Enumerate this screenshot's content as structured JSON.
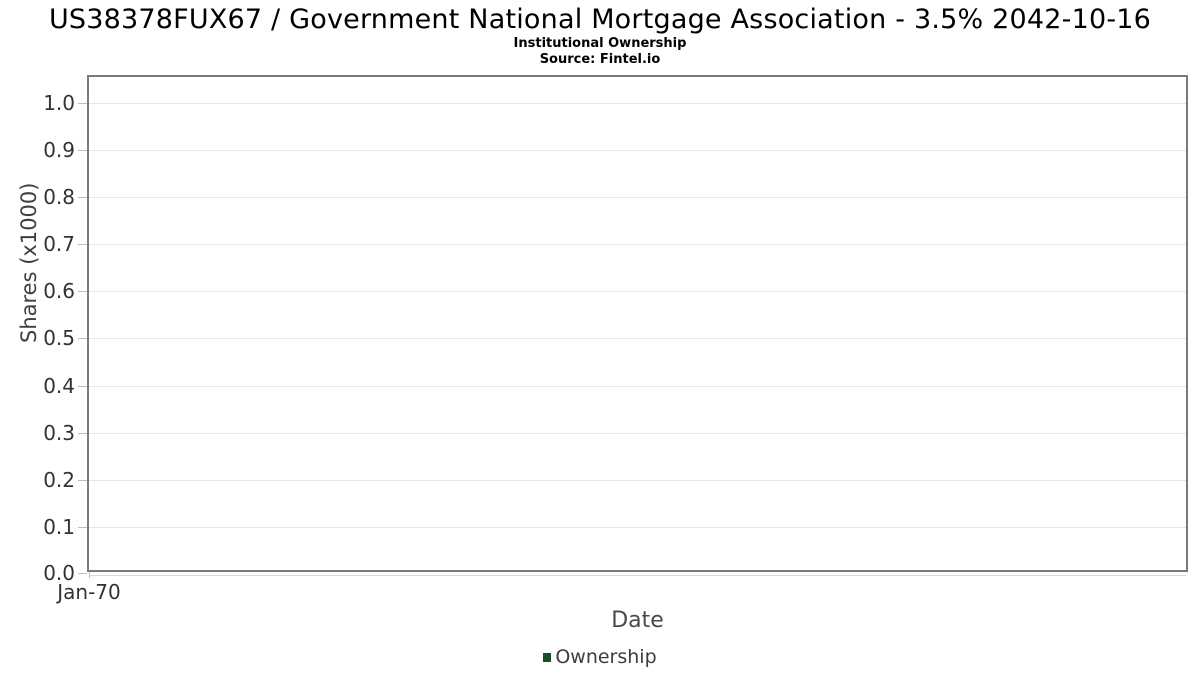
{
  "header": {
    "title": "US38378FUX67 / Government National Mortgage Association - 3.5% 2042-10-16",
    "subtitle": "Institutional Ownership",
    "source": "Source: Fintel.io"
  },
  "chart_data": {
    "type": "line",
    "title": "US38378FUX67 / Government National Mortgage Association - 3.5% 2042-10-16",
    "subtitle": "Institutional Ownership",
    "source": "Source: Fintel.io",
    "xlabel": "Date",
    "ylabel": "Shares (x1000)",
    "x": [],
    "series": [
      {
        "name": "Ownership",
        "values": [],
        "color": "#1e4d2c"
      }
    ],
    "xticks": [
      "Jan-70"
    ],
    "yticks": [
      0.0,
      0.1,
      0.2,
      0.3,
      0.4,
      0.5,
      0.6,
      0.7,
      0.8,
      0.9,
      1.0
    ],
    "ytick_labels": [
      "0.0",
      "0.1",
      "0.2",
      "0.3",
      "0.4",
      "0.5",
      "0.6",
      "0.7",
      "0.8",
      "0.9",
      "1.0"
    ],
    "ylim": [
      0,
      1.055
    ],
    "grid": true,
    "plot_empty": true,
    "legend": {
      "position": "bottom",
      "entries": [
        {
          "label": "Ownership",
          "color": "#1e4d2c"
        }
      ]
    },
    "colors": {
      "grid": "#e6e6e6",
      "plot_border": "#7a7a7a",
      "tick_text": "#333333",
      "axis_title_text": "#4a4a4a",
      "ownership_series": "#1e4d2c"
    }
  }
}
